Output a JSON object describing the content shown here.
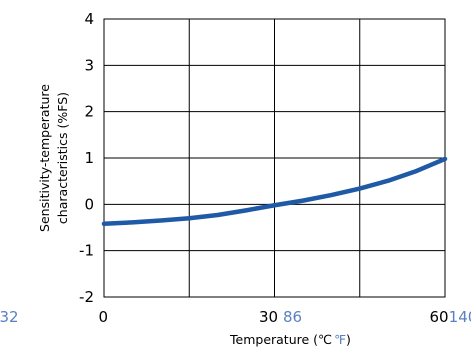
{
  "chart_data": {
    "type": "line",
    "xlabel": "Temperature (℃",
    "xlabel_f_unit": "℉",
    "xlabel_close": ")",
    "ylabel_line1": "Sensitivity-temperature",
    "ylabel_line2": "characteristics (%FS)",
    "xlim": [
      0,
      60
    ],
    "ylim": [
      -2,
      4
    ],
    "x_ticks_c": [
      "0",
      "30",
      "60"
    ],
    "x_ticks_f": [
      "32",
      "86",
      "140"
    ],
    "y_ticks": [
      "4",
      "3",
      "2",
      "1",
      "0",
      "-1",
      "-2"
    ],
    "grid": true,
    "line_color": "#1f5aa6",
    "f_color": "#5b7fc4",
    "series": [
      {
        "x": [
          0,
          5,
          10,
          15,
          20,
          25,
          30,
          35,
          40,
          45,
          50,
          55,
          60
        ],
        "values": [
          -0.42,
          -0.39,
          -0.35,
          -0.3,
          -0.23,
          -0.13,
          -0.02,
          0.08,
          0.2,
          0.34,
          0.51,
          0.72,
          0.98
        ]
      }
    ]
  }
}
